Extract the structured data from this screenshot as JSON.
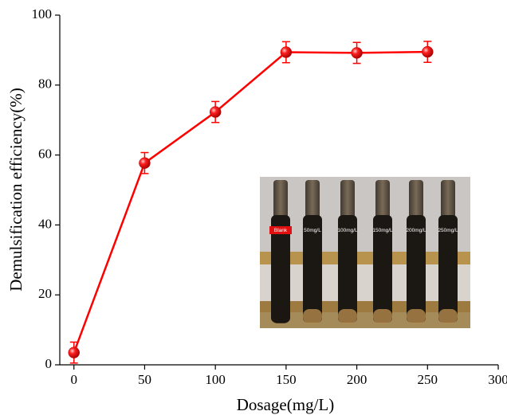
{
  "chart_data": {
    "type": "line",
    "xlabel": "Dosage(mg/L)",
    "ylabel": "Demulsification efficiency(%)",
    "x": [
      0,
      50,
      100,
      150,
      200,
      250
    ],
    "series": [
      {
        "color": "#ff0000",
        "values": [
          3.5,
          57.7,
          72.3,
          89.4,
          89.2,
          89.5
        ],
        "errors": [
          3,
          3,
          3,
          3,
          3,
          3
        ]
      }
    ],
    "xlim": [
      -10,
      300
    ],
    "xticks": [
      0,
      50,
      100,
      150,
      200,
      250,
      300
    ],
    "ylim": [
      0,
      100
    ],
    "yticks": [
      0,
      20,
      40,
      60,
      80,
      100
    ],
    "inset_labels": [
      "Blank",
      "50mg/L",
      "100mg/L",
      "150mg/L",
      "200mg/L",
      "250mg/L"
    ]
  }
}
